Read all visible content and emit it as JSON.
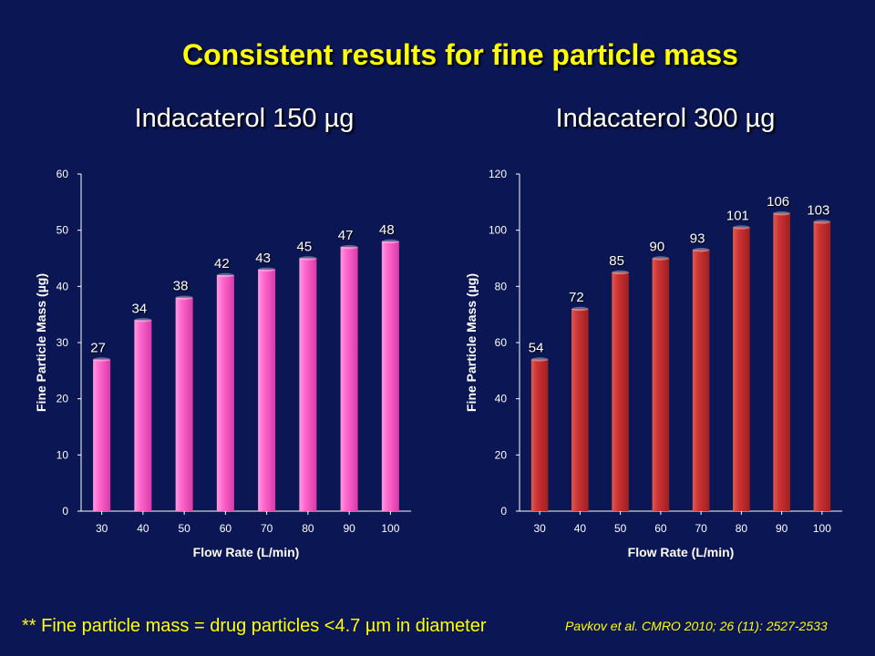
{
  "title": "Consistent results for fine particle mass",
  "footnote": "** Fine particle mass = drug particles <4.7 µm in diameter",
  "citation": "Pavkov et al. CMRO 2010; 26 (11): 2527-2533",
  "colors": {
    "background": "#0b1654",
    "title": "#ffff00",
    "bar_left": "#ff66cc",
    "bar_right": "#cc3333"
  },
  "chart_data": [
    {
      "type": "bar",
      "title": "Indacaterol 150 µg",
      "xlabel": "Flow Rate (L/min)",
      "ylabel": "Fine Particle Mass (µg)",
      "categories": [
        "30",
        "40",
        "50",
        "60",
        "70",
        "80",
        "90",
        "100"
      ],
      "values": [
        27,
        34,
        38,
        42,
        43,
        45,
        47,
        48
      ],
      "ylim": [
        0,
        60
      ],
      "yticks": [
        0,
        10,
        20,
        30,
        40,
        50,
        60
      ],
      "grid": false,
      "color": "#ff66cc"
    },
    {
      "type": "bar",
      "title": "Indacaterol 300 µg",
      "xlabel": "Flow Rate (L/min)",
      "ylabel": "Fine Particle Mass (µg)",
      "categories": [
        "30",
        "40",
        "50",
        "60",
        "70",
        "80",
        "90",
        "100"
      ],
      "values": [
        54,
        72,
        85,
        90,
        93,
        101,
        106,
        103
      ],
      "ylim": [
        0,
        120
      ],
      "yticks": [
        0,
        20,
        40,
        60,
        80,
        100,
        120
      ],
      "grid": false,
      "color": "#cc3333"
    }
  ]
}
